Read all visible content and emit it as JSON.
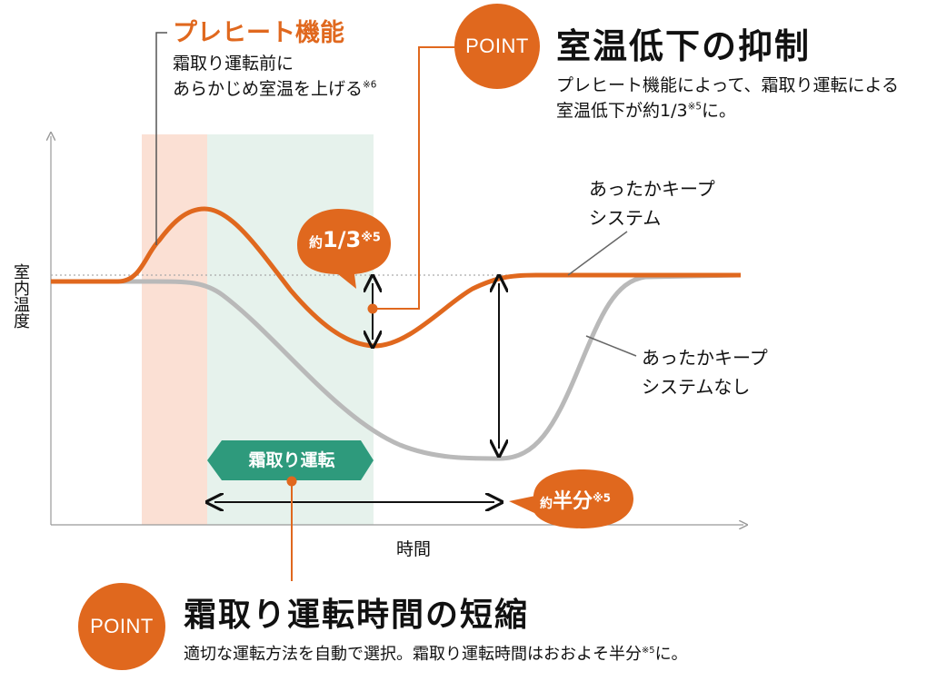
{
  "preheat": {
    "title": "プレヒート機能",
    "line1": "霜取り運転前に",
    "line2": "あらかじめ室温を上げる",
    "note": "※6"
  },
  "point_top": {
    "badge": "POINT",
    "title": "室温低下の抑制",
    "desc1": "プレヒート機能によって、霜取り運転による",
    "desc2_a": "室温低下が約1/3",
    "desc2_note": "※5",
    "desc2_b": "に。"
  },
  "bubble_third": {
    "prefix": "約",
    "value": "1/3",
    "note": "※5"
  },
  "bubble_half": {
    "prefix": "約",
    "value": "半分",
    "note": "※5"
  },
  "label_keep": {
    "line1": "あったかキープ",
    "line2": "システム"
  },
  "label_no_keep": {
    "line1": "あったかキープ",
    "line2": "システムなし"
  },
  "axis": {
    "y_label": "室内温度",
    "x_label": "時間"
  },
  "defrost_tag": "霜取り運転",
  "point_bottom": {
    "badge": "POINT",
    "title": "霜取り運転時間の短縮",
    "desc_a": "適切な運転方法を自動で選択。霜取り運転時間はおおよそ半分",
    "desc_note": "※5",
    "desc_b": "に。"
  },
  "colors": {
    "accent_orange": "#e0681e",
    "preheat_band": "#fbe0d4",
    "defrost_band": "#e6f2ec",
    "defrost_tag": "#2e9a7c",
    "curve_without": "#b9b9b9"
  }
}
